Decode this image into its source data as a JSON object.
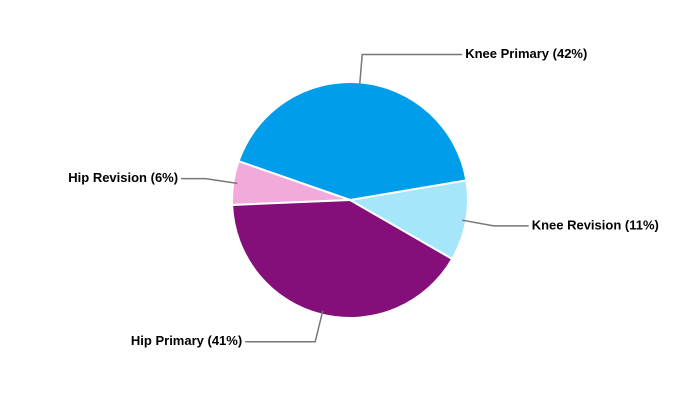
{
  "chart_data": {
    "type": "pie",
    "categories": [
      "Knee Revision (11%)",
      "Knee Primary (42%)",
      "Hip Revision (6%)",
      "Hip Primary (41%)"
    ],
    "values": [
      11,
      42,
      6,
      41
    ],
    "colors": [
      "#a6e6fb",
      "#009deb",
      "#f2a9dc",
      "#840f7a"
    ]
  }
}
